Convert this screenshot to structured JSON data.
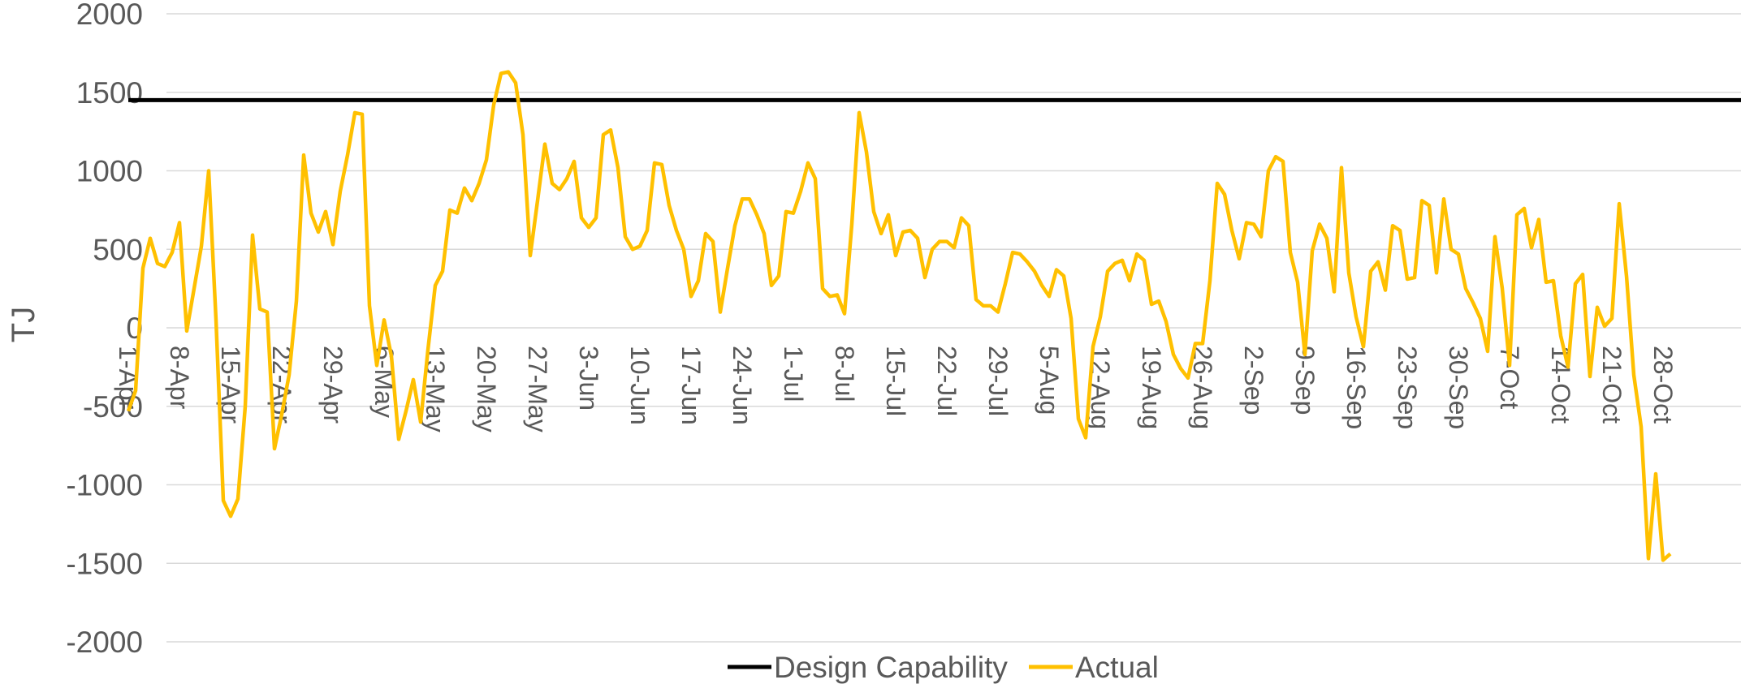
{
  "chart_data": {
    "type": "line",
    "title": "",
    "xlabel": "",
    "ylabel": "TJ",
    "ylim": [
      -2000,
      2000
    ],
    "yticks": [
      2000,
      1500,
      1000,
      500,
      0,
      -500,
      -1000,
      -1500,
      -2000
    ],
    "grid": true,
    "legend_position": "bottom",
    "x_tick_labels": [
      "1-Apr",
      "8-Apr",
      "15-Apr",
      "22-Apr",
      "29-Apr",
      "6-May",
      "13-May",
      "20-May",
      "27-May",
      "3-Jun",
      "10-Jun",
      "17-Jun",
      "24-Jun",
      "1-Jul",
      "8-Jul",
      "15-Jul",
      "22-Jul",
      "29-Jul",
      "5-Aug",
      "12-Aug",
      "19-Aug",
      "26-Aug",
      "2-Sep",
      "9-Sep",
      "16-Sep",
      "23-Sep",
      "30-Sep",
      "7-Oct",
      "14-Oct",
      "21-Oct",
      "28-Oct"
    ],
    "series": [
      {
        "name": "Design Capability",
        "color": "#000000",
        "values": [
          1450,
          1450
        ]
      },
      {
        "name": "Actual",
        "color": "#FFC000",
        "values": [
          -530,
          -400,
          380,
          570,
          410,
          390,
          480,
          670,
          -20,
          250,
          520,
          1000,
          50,
          -1100,
          -1200,
          -1090,
          -500,
          590,
          120,
          100,
          -770,
          -550,
          -300,
          170,
          1100,
          730,
          610,
          740,
          530,
          870,
          1100,
          1370,
          1360,
          140,
          -240,
          50,
          -180,
          -710,
          -530,
          -330,
          -600,
          -140,
          270,
          360,
          750,
          730,
          890,
          810,
          920,
          1070,
          1420,
          1620,
          1630,
          1560,
          1230,
          460,
          810,
          1170,
          920,
          880,
          950,
          1060,
          700,
          640,
          700,
          1230,
          1260,
          1020,
          580,
          500,
          520,
          620,
          1050,
          1040,
          780,
          620,
          500,
          200,
          300,
          600,
          550,
          100,
          380,
          650,
          820,
          820,
          720,
          600,
          270,
          330,
          740,
          730,
          870,
          1050,
          950,
          250,
          200,
          210,
          90,
          660,
          1370,
          1120,
          740,
          600,
          720,
          460,
          610,
          620,
          570,
          320,
          500,
          550,
          550,
          510,
          700,
          650,
          180,
          140,
          140,
          100,
          280,
          480,
          470,
          420,
          360,
          270,
          200,
          370,
          330,
          60,
          -580,
          -700,
          -120,
          70,
          360,
          410,
          430,
          300,
          470,
          430,
          150,
          170,
          40,
          -170,
          -260,
          -320,
          -100,
          -100,
          300,
          920,
          850,
          620,
          440,
          670,
          660,
          580,
          1000,
          1090,
          1060,
          480,
          290,
          -170,
          490,
          660,
          570,
          230,
          1020,
          350,
          70,
          -120,
          360,
          420,
          240,
          650,
          620,
          310,
          320,
          810,
          780,
          350,
          820,
          500,
          470,
          250,
          160,
          60,
          -150,
          580,
          250,
          -240,
          720,
          760,
          510,
          690,
          290,
          300,
          -50,
          -250,
          280,
          340,
          -310,
          130,
          10,
          60,
          790,
          330,
          -300,
          -630,
          -1470,
          -930,
          -1480,
          -1440
        ]
      }
    ]
  }
}
